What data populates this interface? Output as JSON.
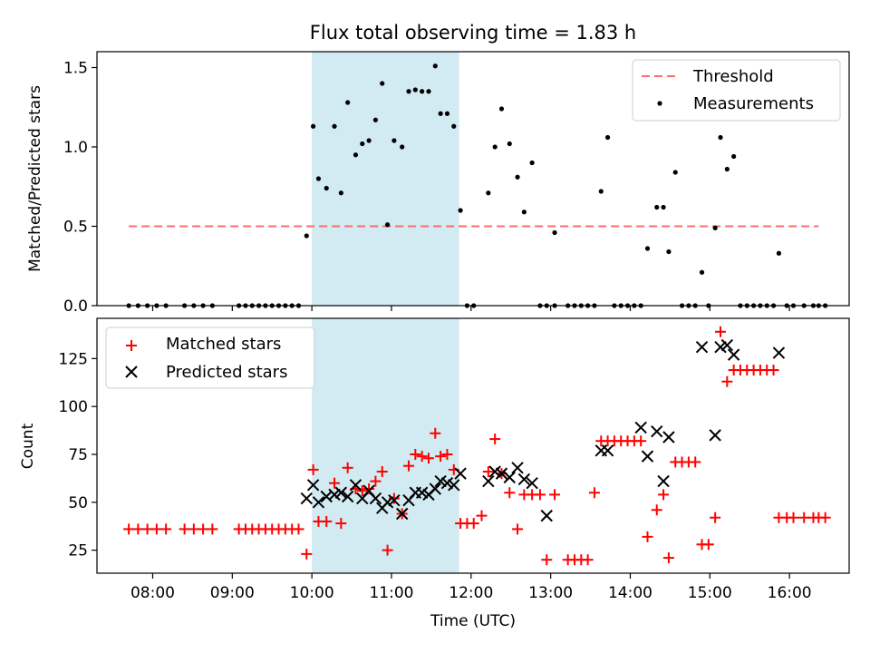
{
  "figure_title": "Flux total observing time = 1.83 h",
  "colors": {
    "shade": "#add8e6",
    "threshold": "#ff6b6b",
    "measurement": "#000000",
    "matched": "#ff0000",
    "predicted": "#000000"
  },
  "chart_data": [
    {
      "type": "scatter",
      "title": "Flux total observing time = 1.83 h",
      "xlabel": "",
      "ylabel": "Matched/Predicted stars",
      "xlim": [
        "07:18",
        "16:45"
      ],
      "ylim": [
        0,
        1.6
      ],
      "yticks": [
        0.0,
        0.5,
        1.0,
        1.5
      ],
      "ytick_labels": [
        "0.0",
        "0.5",
        "1.0",
        "1.5"
      ],
      "shaded_span": [
        "10:00",
        "11:51"
      ],
      "legend_position": "top-right",
      "legend": [
        {
          "label": "Threshold",
          "marker": "dashed-line",
          "color": "#ff6b6b"
        },
        {
          "label": "Measurements",
          "marker": "dot",
          "color": "#000000"
        }
      ],
      "threshold": {
        "name": "Threshold",
        "x": [
          "07:42",
          "16:22"
        ],
        "y": 0.5
      },
      "series": [
        {
          "name": "Measurements",
          "marker": "dot",
          "color": "#000000",
          "points": [
            [
              "07:42",
              0
            ],
            [
              "07:49",
              0
            ],
            [
              "07:56",
              0
            ],
            [
              "08:03",
              0
            ],
            [
              "08:10",
              0
            ],
            [
              "08:24",
              0
            ],
            [
              "08:31",
              0
            ],
            [
              "08:38",
              0
            ],
            [
              "08:45",
              0
            ],
            [
              "09:05",
              0
            ],
            [
              "09:10",
              0
            ],
            [
              "09:15",
              0
            ],
            [
              "09:20",
              0
            ],
            [
              "09:25",
              0
            ],
            [
              "09:30",
              0
            ],
            [
              "09:35",
              0
            ],
            [
              "09:40",
              0
            ],
            [
              "09:45",
              0
            ],
            [
              "09:50",
              0
            ],
            [
              "09:56",
              0.44
            ],
            [
              "10:01",
              1.13
            ],
            [
              "10:05",
              0.8
            ],
            [
              "10:11",
              0.74
            ],
            [
              "10:17",
              1.13
            ],
            [
              "10:22",
              0.71
            ],
            [
              "10:27",
              1.28
            ],
            [
              "10:33",
              0.95
            ],
            [
              "10:38",
              1.02
            ],
            [
              "10:43",
              1.04
            ],
            [
              "10:48",
              1.17
            ],
            [
              "10:53",
              1.4
            ],
            [
              "10:57",
              0.51
            ],
            [
              "11:02",
              1.04
            ],
            [
              "11:08",
              1.0
            ],
            [
              "11:13",
              1.35
            ],
            [
              "11:18",
              1.36
            ],
            [
              "11:23",
              1.35
            ],
            [
              "11:28",
              1.35
            ],
            [
              "11:33",
              1.51
            ],
            [
              "11:37",
              1.21
            ],
            [
              "11:42",
              1.21
            ],
            [
              "11:47",
              1.13
            ],
            [
              "11:52",
              0.6
            ],
            [
              "11:57",
              0
            ],
            [
              "12:02",
              0
            ],
            [
              "12:13",
              0.71
            ],
            [
              "12:18",
              1.0
            ],
            [
              "12:23",
              1.24
            ],
            [
              "12:29",
              1.02
            ],
            [
              "12:35",
              0.81
            ],
            [
              "12:40",
              0.59
            ],
            [
              "12:46",
              0.9
            ],
            [
              "12:52",
              0
            ],
            [
              "12:57",
              0
            ],
            [
              "13:03",
              0.46
            ],
            [
              "13:03",
              0
            ],
            [
              "13:13",
              0
            ],
            [
              "13:18",
              0
            ],
            [
              "13:23",
              0
            ],
            [
              "13:28",
              0
            ],
            [
              "13:33",
              0
            ],
            [
              "13:38",
              0.72
            ],
            [
              "13:43",
              1.06
            ],
            [
              "13:48",
              0
            ],
            [
              "13:53",
              0
            ],
            [
              "13:58",
              0
            ],
            [
              "14:03",
              0
            ],
            [
              "14:08",
              0
            ],
            [
              "14:13",
              0.36
            ],
            [
              "14:20",
              0.62
            ],
            [
              "14:25",
              0.62
            ],
            [
              "14:29",
              0.34
            ],
            [
              "14:34",
              0.84
            ],
            [
              "14:39",
              0
            ],
            [
              "14:44",
              0
            ],
            [
              "14:49",
              0
            ],
            [
              "14:54",
              0.21
            ],
            [
              "14:59",
              0
            ],
            [
              "15:04",
              0.49
            ],
            [
              "15:08",
              1.06
            ],
            [
              "15:13",
              0.86
            ],
            [
              "15:18",
              0.94
            ],
            [
              "15:23",
              0
            ],
            [
              "15:28",
              0
            ],
            [
              "15:33",
              0
            ],
            [
              "15:38",
              0
            ],
            [
              "15:43",
              0
            ],
            [
              "15:48",
              0
            ],
            [
              "15:52",
              0.33
            ],
            [
              "15:58",
              0
            ],
            [
              "16:03",
              0
            ],
            [
              "16:11",
              0
            ],
            [
              "16:18",
              0
            ],
            [
              "16:22",
              0
            ],
            [
              "16:27",
              0
            ]
          ]
        }
      ]
    },
    {
      "type": "scatter",
      "title": "",
      "xlabel": "Time (UTC)",
      "ylabel": "Count",
      "xlim": [
        "07:18",
        "16:45"
      ],
      "ylim": [
        13,
        146
      ],
      "yticks": [
        25,
        50,
        75,
        100,
        125
      ],
      "ytick_labels": [
        "25",
        "50",
        "75",
        "100",
        "125"
      ],
      "xticks": [
        "08:00",
        "09:00",
        "10:00",
        "11:00",
        "12:00",
        "13:00",
        "14:00",
        "15:00",
        "16:00"
      ],
      "xtick_labels": [
        "08:00",
        "09:00",
        "10:00",
        "11:00",
        "12:00",
        "13:00",
        "14:00",
        "15:00",
        "16:00"
      ],
      "shaded_span": [
        "10:00",
        "11:51"
      ],
      "legend_position": "top-left",
      "legend": [
        {
          "label": "Matched stars",
          "marker": "plus",
          "color": "#ff0000"
        },
        {
          "label": "Predicted stars",
          "marker": "x",
          "color": "#000000"
        }
      ],
      "series": [
        {
          "name": "Matched stars",
          "marker": "plus",
          "color": "#ff0000",
          "points": [
            [
              "07:42",
              36
            ],
            [
              "07:49",
              36
            ],
            [
              "07:56",
              36
            ],
            [
              "08:03",
              36
            ],
            [
              "08:10",
              36
            ],
            [
              "08:24",
              36
            ],
            [
              "08:31",
              36
            ],
            [
              "08:38",
              36
            ],
            [
              "08:45",
              36
            ],
            [
              "09:05",
              36
            ],
            [
              "09:10",
              36
            ],
            [
              "09:15",
              36
            ],
            [
              "09:20",
              36
            ],
            [
              "09:25",
              36
            ],
            [
              "09:30",
              36
            ],
            [
              "09:35",
              36
            ],
            [
              "09:40",
              36
            ],
            [
              "09:45",
              36
            ],
            [
              "09:50",
              36
            ],
            [
              "09:56",
              23
            ],
            [
              "10:01",
              67
            ],
            [
              "10:05",
              40
            ],
            [
              "10:11",
              40
            ],
            [
              "10:17",
              60
            ],
            [
              "10:22",
              39
            ],
            [
              "10:27",
              68
            ],
            [
              "10:33",
              57
            ],
            [
              "10:38",
              56
            ],
            [
              "10:43",
              57
            ],
            [
              "10:48",
              61
            ],
            [
              "10:53",
              66
            ],
            [
              "10:57",
              25
            ],
            [
              "11:02",
              52
            ],
            [
              "11:08",
              44
            ],
            [
              "11:13",
              69
            ],
            [
              "11:18",
              75
            ],
            [
              "11:23",
              74
            ],
            [
              "11:28",
              73
            ],
            [
              "11:33",
              86
            ],
            [
              "11:37",
              74
            ],
            [
              "11:42",
              75
            ],
            [
              "11:47",
              67
            ],
            [
              "11:52",
              39
            ],
            [
              "11:57",
              39
            ],
            [
              "12:02",
              39
            ],
            [
              "12:08",
              43
            ],
            [
              "12:13",
              66
            ],
            [
              "12:18",
              83
            ],
            [
              "12:23",
              65
            ],
            [
              "12:29",
              55
            ],
            [
              "12:35",
              36
            ],
            [
              "12:40",
              54
            ],
            [
              "12:46",
              54
            ],
            [
              "12:52",
              54
            ],
            [
              "12:57",
              20
            ],
            [
              "13:03",
              54
            ],
            [
              "13:13",
              20
            ],
            [
              "13:18",
              20
            ],
            [
              "13:23",
              20
            ],
            [
              "13:28",
              20
            ],
            [
              "13:33",
              55
            ],
            [
              "13:38",
              82
            ],
            [
              "13:43",
              82
            ],
            [
              "13:48",
              82
            ],
            [
              "13:53",
              82
            ],
            [
              "13:58",
              82
            ],
            [
              "14:03",
              82
            ],
            [
              "14:08",
              82
            ],
            [
              "14:13",
              32
            ],
            [
              "14:20",
              46
            ],
            [
              "14:25",
              54
            ],
            [
              "14:29",
              21
            ],
            [
              "14:34",
              71
            ],
            [
              "14:39",
              71
            ],
            [
              "14:44",
              71
            ],
            [
              "14:49",
              71
            ],
            [
              "14:54",
              28
            ],
            [
              "14:59",
              28
            ],
            [
              "15:04",
              42
            ],
            [
              "15:08",
              139
            ],
            [
              "15:13",
              113
            ],
            [
              "15:18",
              119
            ],
            [
              "15:23",
              119
            ],
            [
              "15:28",
              119
            ],
            [
              "15:33",
              119
            ],
            [
              "15:38",
              119
            ],
            [
              "15:43",
              119
            ],
            [
              "15:48",
              119
            ],
            [
              "15:52",
              42
            ],
            [
              "15:58",
              42
            ],
            [
              "16:03",
              42
            ],
            [
              "16:11",
              42
            ],
            [
              "16:18",
              42
            ],
            [
              "16:22",
              42
            ],
            [
              "16:27",
              42
            ]
          ]
        },
        {
          "name": "Predicted stars",
          "marker": "x",
          "color": "#000000",
          "points": [
            [
              "09:56",
              52
            ],
            [
              "10:01",
              59
            ],
            [
              "10:05",
              50
            ],
            [
              "10:11",
              53
            ],
            [
              "10:17",
              54
            ],
            [
              "10:22",
              55
            ],
            [
              "10:27",
              53
            ],
            [
              "10:33",
              59
            ],
            [
              "10:38",
              52
            ],
            [
              "10:43",
              56
            ],
            [
              "10:48",
              52
            ],
            [
              "10:53",
              47
            ],
            [
              "10:57",
              50
            ],
            [
              "11:02",
              51
            ],
            [
              "11:08",
              44
            ],
            [
              "11:13",
              51
            ],
            [
              "11:18",
              55
            ],
            [
              "11:23",
              55
            ],
            [
              "11:28",
              54
            ],
            [
              "11:33",
              57
            ],
            [
              "11:37",
              61
            ],
            [
              "11:42",
              60
            ],
            [
              "11:47",
              59
            ],
            [
              "11:52",
              65
            ],
            [
              "12:13",
              61
            ],
            [
              "12:18",
              66
            ],
            [
              "12:23",
              65
            ],
            [
              "12:29",
              63
            ],
            [
              "12:35",
              68
            ],
            [
              "12:40",
              62
            ],
            [
              "12:46",
              60
            ],
            [
              "12:57",
              43
            ],
            [
              "13:38",
              77
            ],
            [
              "13:43",
              77
            ],
            [
              "14:08",
              89
            ],
            [
              "14:13",
              74
            ],
            [
              "14:20",
              87
            ],
            [
              "14:25",
              61
            ],
            [
              "14:29",
              84
            ],
            [
              "14:54",
              131
            ],
            [
              "15:04",
              85
            ],
            [
              "15:08",
              131
            ],
            [
              "15:13",
              132
            ],
            [
              "15:18",
              127
            ],
            [
              "15:52",
              128
            ]
          ]
        }
      ]
    }
  ]
}
